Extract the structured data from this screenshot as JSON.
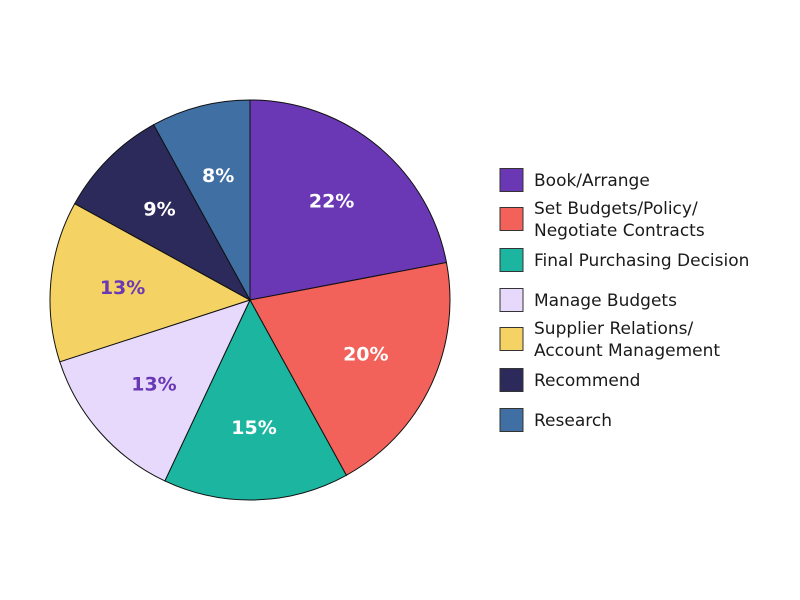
{
  "chart_data": {
    "type": "pie",
    "start": "top",
    "direction": "clockwise",
    "legend_placement": "right",
    "slices": [
      {
        "label": "Book/Arrange",
        "legend_lines": [
          "Book/Arrange"
        ],
        "value": 22,
        "value_label": "22%",
        "color": "#6a37b5",
        "label_color": "#ffffff"
      },
      {
        "label": "Set Budgets/Policy/ Negotiate Contracts",
        "legend_lines": [
          "Set Budgets/Policy/",
          "Negotiate Contracts"
        ],
        "value": 20,
        "value_label": "20%",
        "color": "#f2625a",
        "label_color": "#ffffff"
      },
      {
        "label": "Final Purchasing Decision",
        "legend_lines": [
          "Final Purchasing Decision"
        ],
        "value": 15,
        "value_label": "15%",
        "color": "#1bb5a0",
        "label_color": "#ffffff"
      },
      {
        "label": "Manage Budgets",
        "legend_lines": [
          "Manage Budgets"
        ],
        "value": 13,
        "value_label": "13%",
        "color": "#e6d9fb",
        "label_color": "#6a37b5"
      },
      {
        "label": "Supplier Relations/ Account Management",
        "legend_lines": [
          "Supplier Relations/",
          "Account Management"
        ],
        "value": 13,
        "value_label": "13%",
        "color": "#f5d264",
        "label_color": "#6a37b5"
      },
      {
        "label": "Recommend",
        "legend_lines": [
          "Recommend"
        ],
        "value": 9,
        "value_label": "9%",
        "color": "#2b2a5a",
        "label_color": "#ffffff"
      },
      {
        "label": "Research",
        "legend_lines": [
          "Research"
        ],
        "value": 8,
        "value_label": "8%",
        "color": "#3f6fa3",
        "label_color": "#ffffff"
      }
    ]
  }
}
